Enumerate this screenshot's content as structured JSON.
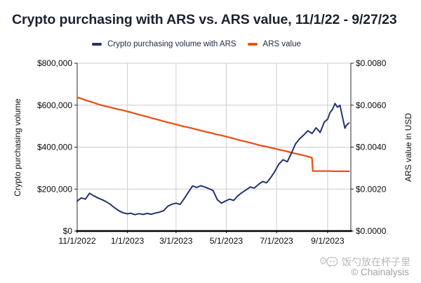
{
  "title": "Crypto purchasing with ARS vs. ARS value, 11/1/22 - 9/27/23",
  "legend": [
    {
      "label": "Crypto purchasing volume with ARS",
      "color": "#24356B"
    },
    {
      "label": "ARS value",
      "color": "#E8521A"
    }
  ],
  "footer": {
    "watermark": "饭勺放在杯子里",
    "watermark_icon": "chat-bubbles-icon",
    "credit": "© Chainalysis"
  },
  "colors": {
    "grid": "#cccccc",
    "spine": "#2b2b2b",
    "bottom_axis": "#000000",
    "tick_text": "#0a0a0a"
  },
  "chart_data": {
    "type": "line",
    "title": "Crypto purchasing with ARS vs. ARS value, 11/1/22 - 9/27/23",
    "grid": true,
    "legend_position": "top-center",
    "x_axis": {
      "start_date": "11/1/2022",
      "end_date": "9/27/2023",
      "tick_days": [
        0,
        61,
        120,
        181,
        242,
        304
      ],
      "tick_labels": [
        "11/1/2022",
        "1/1/2023",
        "3/1/2023",
        "5/1/2023",
        "7/1/2023",
        "9/1/2023"
      ]
    },
    "left_axis": {
      "label": "Crypto purchasing volume",
      "range": [
        0,
        800000
      ],
      "ticks": [
        0,
        200000,
        400000,
        600000,
        800000
      ],
      "tick_labels": [
        "$0",
        "$200,000",
        "$400,000",
        "$600,000",
        "$800,000"
      ]
    },
    "right_axis": {
      "label": "ARS value in USD",
      "range": [
        0,
        0.008
      ],
      "ticks": [
        0,
        0.002,
        0.004,
        0.006,
        0.008
      ],
      "tick_labels": [
        "$0.0000",
        "$0.0020",
        "$0.0040",
        "$0.0060",
        "$0.0080"
      ]
    },
    "days": [
      0,
      5,
      10,
      15,
      20,
      25,
      30,
      35,
      40,
      45,
      50,
      55,
      61,
      65,
      70,
      75,
      80,
      85,
      90,
      95,
      100,
      105,
      110,
      115,
      120,
      125,
      130,
      135,
      140,
      145,
      150,
      155,
      160,
      165,
      170,
      175,
      180,
      185,
      190,
      195,
      200,
      205,
      210,
      215,
      220,
      225,
      230,
      235,
      240,
      245,
      250,
      255,
      260,
      265,
      270,
      275,
      280,
      285,
      286,
      290,
      295,
      300,
      304,
      307,
      310,
      313,
      316,
      319,
      322,
      325,
      327,
      330
    ],
    "series": [
      {
        "name": "Crypto purchasing volume with ARS",
        "axis": "left",
        "color": "#24356B",
        "values": [
          143000,
          158000,
          152000,
          180000,
          168000,
          158000,
          150000,
          140000,
          128000,
          112000,
          98000,
          88000,
          82000,
          85000,
          78000,
          83000,
          79000,
          84000,
          80000,
          86000,
          90000,
          97000,
          118000,
          128000,
          133000,
          127000,
          155000,
          185000,
          215000,
          208000,
          216000,
          210000,
          202000,
          193000,
          150000,
          133000,
          143000,
          152000,
          146000,
          168000,
          183000,
          196000,
          210000,
          205000,
          222000,
          236000,
          230000,
          255000,
          285000,
          320000,
          340000,
          330000,
          370000,
          415000,
          440000,
          458000,
          478000,
          465000,
          470000,
          492000,
          470000,
          520000,
          533000,
          565000,
          580000,
          608000,
          590000,
          600000,
          545000,
          490000,
          505000,
          515000
        ]
      },
      {
        "name": "ARS value",
        "axis": "right",
        "color": "#E8521A",
        "values": [
          0.00637,
          0.00631,
          0.00624,
          0.00618,
          0.00612,
          0.00605,
          0.00599,
          0.00594,
          0.0059,
          0.00585,
          0.0058,
          0.00576,
          0.0057,
          0.00566,
          0.0056,
          0.00555,
          0.0055,
          0.00545,
          0.00539,
          0.00534,
          0.00529,
          0.00523,
          0.00518,
          0.00513,
          0.00508,
          0.00503,
          0.00498,
          0.00494,
          0.00489,
          0.00484,
          0.00479,
          0.00474,
          0.0047,
          0.00465,
          0.0046,
          0.00456,
          0.00451,
          0.00446,
          0.00441,
          0.00435,
          0.0043,
          0.00426,
          0.00421,
          0.00416,
          0.0041,
          0.00406,
          0.00402,
          0.00397,
          0.00393,
          0.00388,
          0.00384,
          0.00379,
          0.00374,
          0.00369,
          0.00365,
          0.0036,
          0.00355,
          0.00349,
          0.00286,
          0.00286,
          0.00286,
          0.00286,
          0.00286,
          0.00286,
          0.00285,
          0.00285,
          0.00285,
          0.00285,
          0.00285,
          0.00285,
          0.00285,
          0.00285
        ]
      }
    ]
  }
}
